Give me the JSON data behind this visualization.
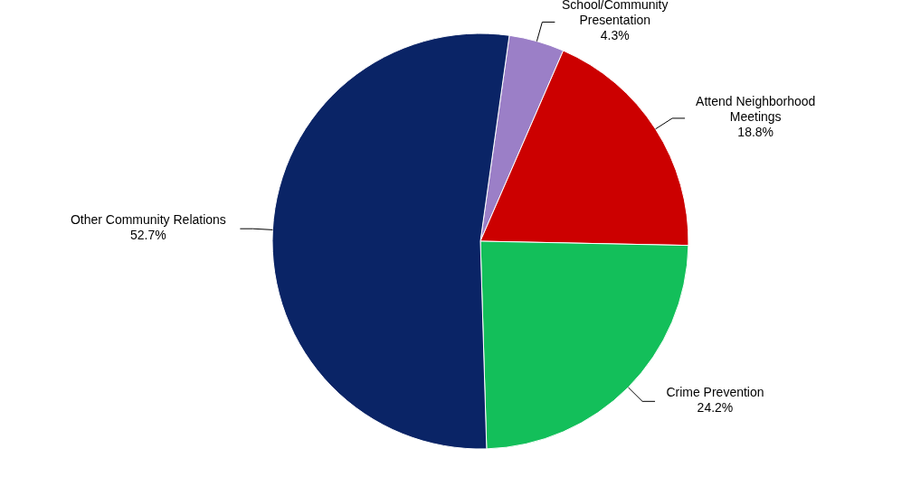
{
  "chart_data": {
    "type": "pie",
    "categories": [
      "School/Community Presentation",
      "Attend Neighborhood Meetings",
      "Crime Prevention",
      "Other Community Relations"
    ],
    "values": [
      4.3,
      18.8,
      24.2,
      52.7
    ],
    "value_labels": [
      "4.3%",
      "18.8%",
      "24.2%",
      "52.7%"
    ],
    "colors": [
      "#9b7fc7",
      "#cc0000",
      "#13bf5a",
      "#0a2466"
    ]
  }
}
